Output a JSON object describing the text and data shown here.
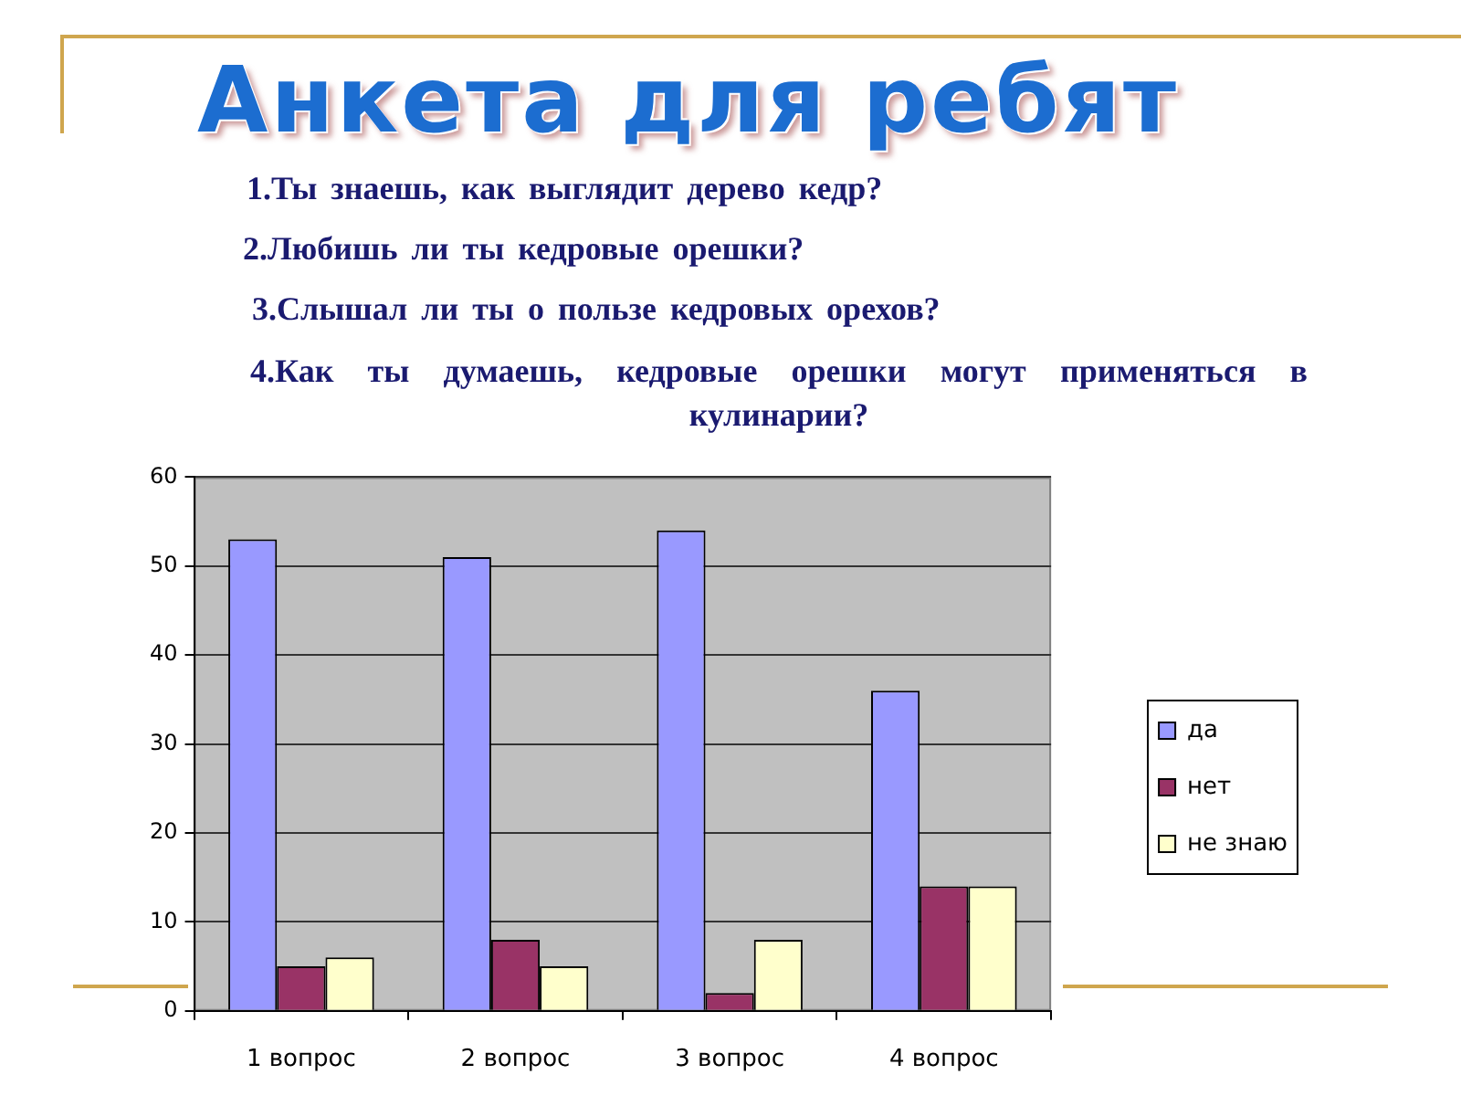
{
  "chart_data": {
    "type": "bar",
    "title": "Анкета для ребят",
    "annotations": [
      "1.Ты знаешь, как выглядит дерево кедр?",
      "2.Любишь ли ты кедровые орешки?",
      "3.Слышал ли ты о пользе кедровых орехов?",
      "4.Как ты думаешь, кедровые орешки могут применяться в кулинарии?"
    ],
    "categories": [
      "1 вопрос",
      "2 вопрос",
      "3 вопрос",
      "4 вопрос"
    ],
    "series": [
      {
        "name": "да",
        "color": "#9999ff",
        "values": [
          53,
          51,
          54,
          36
        ]
      },
      {
        "name": "нет",
        "color": "#993366",
        "values": [
          5,
          8,
          2,
          14
        ]
      },
      {
        "name": "не знаю",
        "color": "#ffffcc",
        "values": [
          6,
          5,
          8,
          14
        ]
      }
    ],
    "ylim": [
      0,
      60
    ],
    "yticks": [
      0,
      10,
      20,
      30,
      40,
      50,
      60
    ],
    "grid": "y",
    "legend": "right"
  }
}
